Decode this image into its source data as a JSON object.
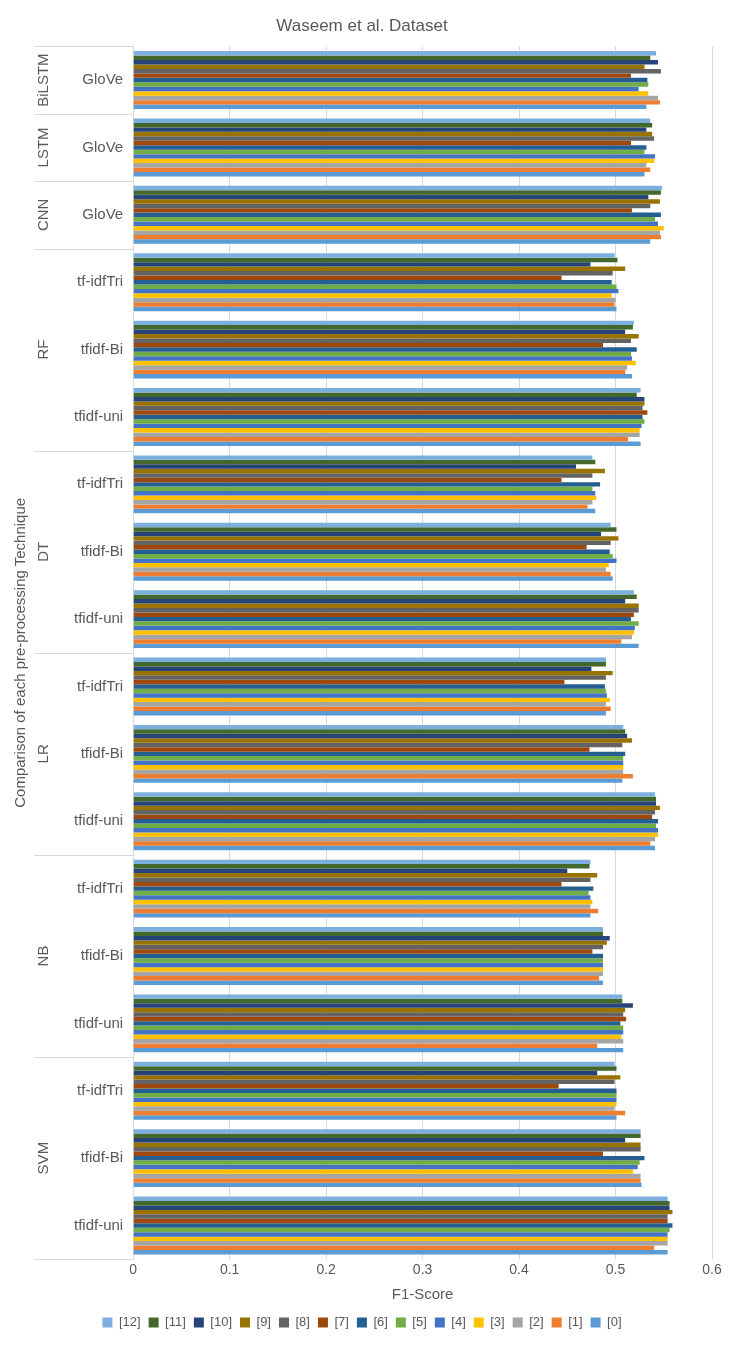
{
  "chart_data": {
    "type": "bar",
    "orientation": "horizontal",
    "title": "Waseem et al. Dataset",
    "xlabel": "F1-Score",
    "ylabel": "Comparison of each pre-processing Technique",
    "categories": [
      "GloVe",
      "GloVe",
      "GloVe",
      "tf-idfTri",
      "tfidf-Bi",
      "tfidf-uni",
      "tf-idfTri",
      "tfidf-Bi",
      "tfidf-uni",
      "tf-idfTri",
      "tfidf-Bi",
      "tfidf-uni",
      "tf-idfTri",
      "tfidf-Bi",
      "tfidf-uni",
      "tf-idfTri",
      "tfidf-Bi",
      "tfidf-uni"
    ],
    "annotations": [
      "BiLSTM",
      "LSTM",
      "CNN",
      "RF",
      "DT",
      "LR",
      "NB",
      "SVM"
    ],
    "series": [
      {
        "name": "[12]",
        "color": "#7cafdd",
        "values": [
          0.542,
          0.536,
          0.548,
          0.499,
          0.519,
          0.526,
          0.476,
          0.495,
          0.519,
          0.49,
          0.508,
          0.541,
          0.474,
          0.487,
          0.507,
          0.499,
          0.526,
          0.554
        ]
      },
      {
        "name": "[11]",
        "color": "#43682b",
        "values": [
          0.536,
          0.538,
          0.547,
          0.502,
          0.518,
          0.522,
          0.479,
          0.501,
          0.522,
          0.49,
          0.51,
          0.542,
          0.473,
          0.487,
          0.507,
          0.501,
          0.526,
          0.556
        ]
      },
      {
        "name": "[10]",
        "color": "#264478",
        "values": [
          0.544,
          0.532,
          0.534,
          0.474,
          0.51,
          0.53,
          0.459,
          0.485,
          0.51,
          0.475,
          0.512,
          0.542,
          0.45,
          0.494,
          0.518,
          0.481,
          0.51,
          0.556
        ]
      },
      {
        "name": "[9]",
        "color": "#997300",
        "values": [
          0.53,
          0.538,
          0.546,
          0.51,
          0.524,
          0.53,
          0.489,
          0.503,
          0.524,
          0.497,
          0.517,
          0.546,
          0.481,
          0.491,
          0.51,
          0.505,
          0.526,
          0.559
        ]
      },
      {
        "name": "[8]",
        "color": "#636363",
        "values": [
          0.547,
          0.54,
          0.536,
          0.497,
          0.516,
          0.528,
          0.476,
          0.495,
          0.524,
          0.49,
          0.507,
          0.541,
          0.474,
          0.487,
          0.508,
          0.499,
          0.526,
          0.554
        ]
      },
      {
        "name": "[7]",
        "color": "#9e480e",
        "values": [
          0.516,
          0.516,
          0.517,
          0.444,
          0.487,
          0.533,
          0.444,
          0.47,
          0.519,
          0.447,
          0.473,
          0.538,
          0.444,
          0.476,
          0.511,
          0.441,
          0.487,
          0.554
        ]
      },
      {
        "name": "[6]",
        "color": "#255e91",
        "values": [
          0.533,
          0.532,
          0.547,
          0.496,
          0.522,
          0.528,
          0.484,
          0.494,
          0.516,
          0.489,
          0.51,
          0.544,
          0.477,
          0.487,
          0.505,
          0.501,
          0.53,
          0.559
        ]
      },
      {
        "name": "[5]",
        "color": "#70ad47",
        "values": [
          0.534,
          0.53,
          0.541,
          0.501,
          0.516,
          0.53,
          0.476,
          0.497,
          0.524,
          0.49,
          0.508,
          0.542,
          0.472,
          0.487,
          0.508,
          0.501,
          0.525,
          0.556
        ]
      },
      {
        "name": "[4]",
        "color": "#4472c4",
        "values": [
          0.524,
          0.541,
          0.544,
          0.503,
          0.517,
          0.527,
          0.479,
          0.501,
          0.52,
          0.491,
          0.508,
          0.544,
          0.474,
          0.487,
          0.508,
          0.501,
          0.523,
          0.554
        ]
      },
      {
        "name": "[3]",
        "color": "#ffc000",
        "values": [
          0.534,
          0.54,
          0.55,
          0.496,
          0.521,
          0.525,
          0.48,
          0.493,
          0.519,
          0.494,
          0.508,
          0.544,
          0.476,
          0.487,
          0.506,
          0.501,
          0.518,
          0.554
        ]
      },
      {
        "name": "[2]",
        "color": "#a5a5a5",
        "values": [
          0.544,
          0.532,
          0.546,
          0.5,
          0.512,
          0.525,
          0.476,
          0.49,
          0.517,
          0.49,
          0.508,
          0.541,
          0.474,
          0.487,
          0.508,
          0.499,
          0.526,
          0.554
        ]
      },
      {
        "name": "[1]",
        "color": "#ed7d31",
        "values": [
          0.546,
          0.536,
          0.547,
          0.499,
          0.51,
          0.513,
          0.471,
          0.495,
          0.506,
          0.495,
          0.518,
          0.536,
          0.482,
          0.483,
          0.481,
          0.51,
          0.526,
          0.54
        ]
      },
      {
        "name": "[0]",
        "color": "#5b9bd5",
        "values": [
          0.532,
          0.53,
          0.536,
          0.501,
          0.517,
          0.526,
          0.479,
          0.497,
          0.524,
          0.49,
          0.507,
          0.541,
          0.474,
          0.487,
          0.508,
          0.501,
          0.527,
          0.554
        ]
      }
    ],
    "xlim": [
      0,
      0.6
    ],
    "xticks": [
      0,
      0.1,
      0.2,
      0.3,
      0.4,
      0.5,
      0.6
    ],
    "grid": "x",
    "legend": "bottom"
  }
}
